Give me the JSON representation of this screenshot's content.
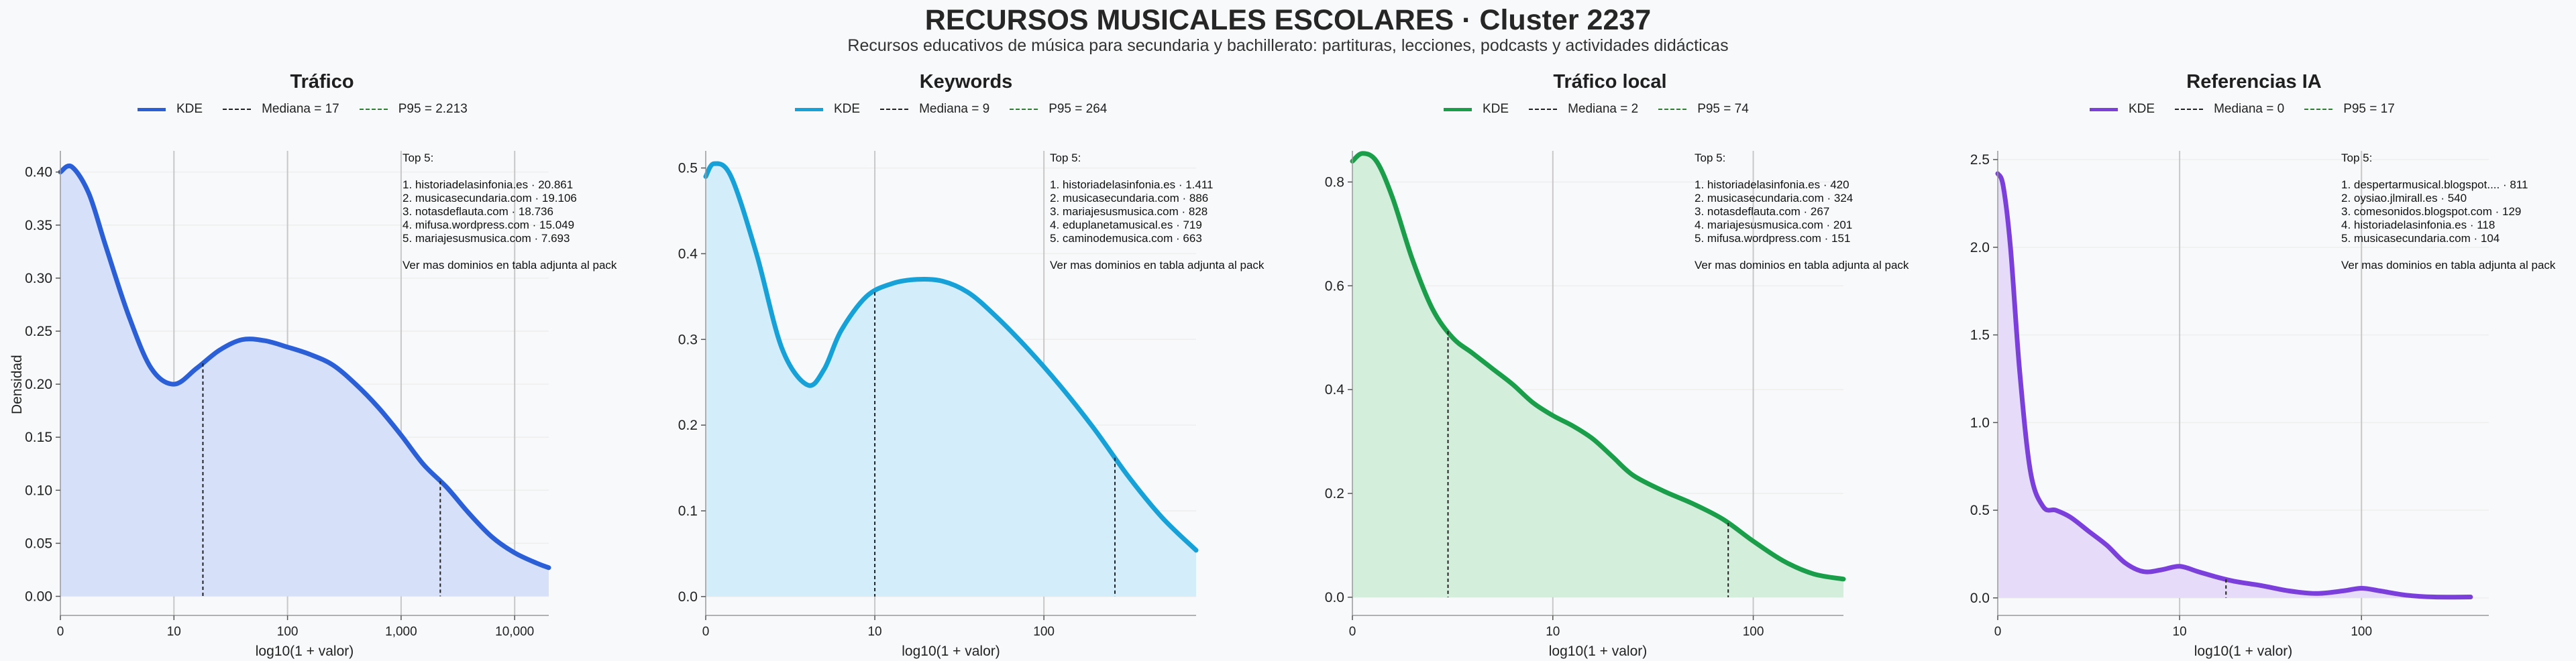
{
  "title": "RECURSOS MUSICALES ESCOLARES · Cluster 2237",
  "subtitle": "Recursos educativos de música para secundaria y bachillerato: partituras, lecciones, podcasts y actividades didácticas",
  "ylabel": "Densidad",
  "xlabel": "log10(1 + valor)",
  "legend_kde": "KDE",
  "colors": {
    "median": "#222222",
    "p95": "#2e7d32",
    "grid": "#c8c8c8"
  },
  "chart_data": [
    {
      "type": "area",
      "title": "Tráfico",
      "color": "#2a5fd8",
      "fill": "#d6e0f8",
      "median_label": "Mediana = 17",
      "p95_label": "P95 = 2.213",
      "x_ticks": [
        "0",
        "10",
        "100",
        "1,000",
        "10,000"
      ],
      "y_ticks": [
        "0.00",
        "0.05",
        "0.10",
        "0.15",
        "0.20",
        "0.25",
        "0.30",
        "0.35",
        "0.40"
      ],
      "xlim": [
        0,
        4.3
      ],
      "ylim": [
        -0.018,
        0.42
      ],
      "median_x": 1.255,
      "p95_x": 3.345,
      "x": [
        0,
        0.1,
        0.25,
        0.4,
        0.6,
        0.8,
        1.0,
        1.2,
        1.4,
        1.6,
        1.8,
        2.0,
        2.2,
        2.4,
        2.6,
        2.8,
        3.0,
        3.2,
        3.4,
        3.6,
        3.8,
        4.0,
        4.2,
        4.3
      ],
      "y": [
        0.4,
        0.405,
        0.38,
        0.33,
        0.265,
        0.215,
        0.2,
        0.215,
        0.232,
        0.242,
        0.241,
        0.235,
        0.228,
        0.218,
        0.2,
        0.178,
        0.152,
        0.124,
        0.103,
        0.078,
        0.056,
        0.041,
        0.031,
        0.027
      ],
      "top5_header": "Top 5:",
      "top5": [
        "1. historiadelasinfonia.es · 20.861",
        "2. musicasecundaria.com · 19.106",
        "3. notasdeflauta.com · 18.736",
        "4. mifusa.wordpress.com · 15.049",
        "5. mariajesusmusica.com · 7.693"
      ],
      "top5_footer": "Ver mas dominios en tabla adjunta al pack"
    },
    {
      "type": "area",
      "title": "Keywords",
      "color": "#16a2d8",
      "fill": "#d3eefa",
      "median_label": "Mediana = 9",
      "p95_label": "P95 = 264",
      "x_ticks": [
        "0",
        "10",
        "100"
      ],
      "y_ticks": [
        "0.0",
        "0.1",
        "0.2",
        "0.3",
        "0.4",
        "0.5"
      ],
      "xlim": [
        0,
        2.9
      ],
      "ylim": [
        -0.022,
        0.52
      ],
      "median_x": 1.0,
      "p95_x": 2.42,
      "x": [
        0,
        0.05,
        0.15,
        0.3,
        0.45,
        0.6,
        0.7,
        0.8,
        0.95,
        1.1,
        1.25,
        1.4,
        1.55,
        1.7,
        1.9,
        2.1,
        2.3,
        2.5,
        2.7,
        2.9
      ],
      "y": [
        0.49,
        0.505,
        0.49,
        0.4,
        0.29,
        0.247,
        0.265,
        0.31,
        0.35,
        0.365,
        0.37,
        0.368,
        0.355,
        0.33,
        0.29,
        0.245,
        0.195,
        0.14,
        0.092,
        0.054
      ],
      "top5_header": "Top 5:",
      "top5": [
        "1. historiadelasinfonia.es · 1.411",
        "2. musicasecundaria.com · 886",
        "3. mariajesusmusica.com · 828",
        "4. eduplanetamusical.es · 719",
        "5. caminodemusica.com · 663"
      ],
      "top5_footer": "Ver mas dominios en tabla adjunta al pack"
    },
    {
      "type": "area",
      "title": "Tráfico local",
      "color": "#1a9e4a",
      "fill": "#d3eedb",
      "median_label": "Mediana = 2",
      "p95_label": "P95 = 74",
      "x_ticks": [
        "0",
        "10",
        "100"
      ],
      "y_ticks": [
        "0.0",
        "0.2",
        "0.4",
        "0.6",
        "0.8"
      ],
      "xlim": [
        0,
        2.45
      ],
      "ylim": [
        -0.035,
        0.86
      ],
      "median_x": 0.477,
      "p95_x": 1.875,
      "x": [
        0,
        0.05,
        0.12,
        0.2,
        0.3,
        0.4,
        0.5,
        0.6,
        0.7,
        0.8,
        0.9,
        1.0,
        1.1,
        1.2,
        1.3,
        1.4,
        1.55,
        1.7,
        1.85,
        2.0,
        2.15,
        2.3,
        2.45
      ],
      "y": [
        0.84,
        0.855,
        0.84,
        0.77,
        0.65,
        0.555,
        0.5,
        0.47,
        0.44,
        0.41,
        0.375,
        0.35,
        0.33,
        0.305,
        0.27,
        0.235,
        0.205,
        0.18,
        0.15,
        0.108,
        0.07,
        0.045,
        0.035
      ],
      "top5_header": "Top 5:",
      "top5": [
        "1. historiadelasinfonia.es · 420",
        "2. musicasecundaria.com · 324",
        "3. notasdeflauta.com · 267",
        "4. mariajesusmusica.com · 201",
        "5. mifusa.wordpress.com · 151"
      ],
      "top5_footer": "Ver mas dominios en tabla adjunta al pack"
    },
    {
      "type": "area",
      "title": "Referencias IA",
      "color": "#7b3fdc",
      "fill": "#e6dcfa",
      "median_label": "Mediana = 0",
      "p95_label": "P95 = 17",
      "x_ticks": [
        "0",
        "10",
        "100"
      ],
      "y_ticks": [
        "0.0",
        "0.5",
        "1.0",
        "1.5",
        "2.0",
        "2.5"
      ],
      "xlim": [
        0,
        2.7
      ],
      "ylim": [
        -0.1,
        2.55
      ],
      "median_x": 0,
      "p95_x": 1.255,
      "x": [
        0,
        0.03,
        0.07,
        0.12,
        0.18,
        0.25,
        0.32,
        0.4,
        0.5,
        0.6,
        0.7,
        0.8,
        0.9,
        1.0,
        1.1,
        1.2,
        1.3,
        1.45,
        1.6,
        1.75,
        1.9,
        2.0,
        2.1,
        2.25,
        2.4,
        2.6
      ],
      "y": [
        2.42,
        2.35,
        2.0,
        1.3,
        0.72,
        0.52,
        0.5,
        0.46,
        0.38,
        0.3,
        0.2,
        0.15,
        0.16,
        0.18,
        0.15,
        0.12,
        0.095,
        0.07,
        0.04,
        0.025,
        0.04,
        0.055,
        0.04,
        0.015,
        0.005,
        0.005
      ],
      "top5_header": "Top 5:",
      "top5": [
        "1. despertarmusical.blogspot.... · 811",
        "2. oysiao.jlmirall.es · 540",
        "3. comesonidos.blogspot.com · 129",
        "4. historiadelasinfonia.es · 118",
        "5. musicasecundaria.com · 104"
      ],
      "top5_footer": "Ver mas dominios en tabla adjunta al pack"
    }
  ]
}
